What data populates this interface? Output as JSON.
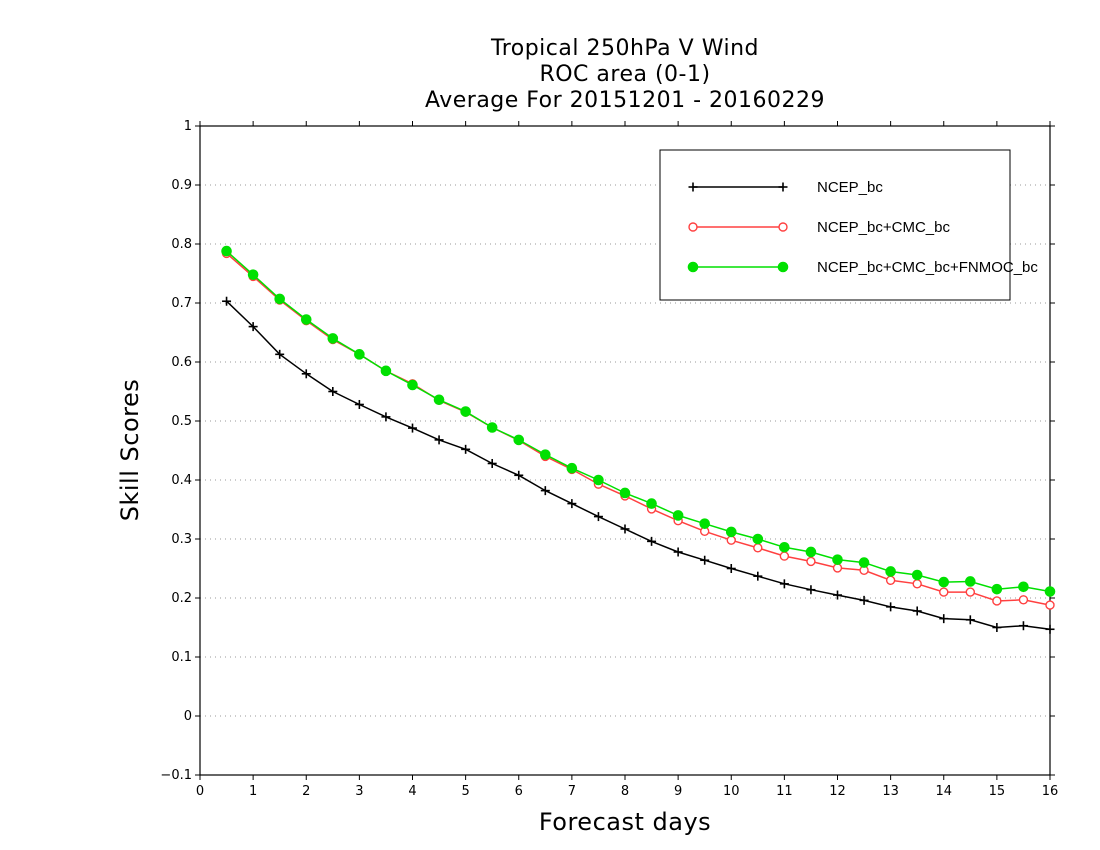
{
  "chart_data": {
    "type": "line",
    "title_lines": [
      "Tropical 250hPa V Wind",
      "ROC area (0-1)",
      "Average For 20151201 - 20160229"
    ],
    "xlabel": "Forecast days",
    "ylabel": "Skill Scores",
    "xlim": [
      0,
      16
    ],
    "ylim": [
      -0.1,
      1
    ],
    "x_ticks": [
      "0",
      "1",
      "2",
      "3",
      "4",
      "5",
      "6",
      "7",
      "8",
      "9",
      "10",
      "11",
      "12",
      "13",
      "14",
      "15",
      "16"
    ],
    "y_ticks": [
      "−0.1",
      "0",
      "0.1",
      "0.2",
      "0.3",
      "0.4",
      "0.5",
      "0.6",
      "0.7",
      "0.8",
      "0.9",
      "1"
    ],
    "grid": "horizontal-dotted",
    "legend_position": "top-right",
    "x": [
      0.5,
      1,
      1.5,
      2,
      2.5,
      3,
      3.5,
      4,
      4.5,
      5,
      5.5,
      6,
      6.5,
      7,
      7.5,
      8,
      8.5,
      9,
      9.5,
      10,
      10.5,
      11,
      11.5,
      12,
      12.5,
      13,
      13.5,
      14,
      14.5,
      15,
      15.5,
      16
    ],
    "series": [
      {
        "name": "NCEP_bc",
        "color": "#000000",
        "marker": "plus",
        "values": [
          0.703,
          0.66,
          0.613,
          0.58,
          0.55,
          0.528,
          0.507,
          0.488,
          0.468,
          0.452,
          0.428,
          0.408,
          0.382,
          0.36,
          0.338,
          0.317,
          0.296,
          0.278,
          0.264,
          0.25,
          0.237,
          0.224,
          0.214,
          0.205,
          0.196,
          0.185,
          0.178,
          0.165,
          0.163,
          0.15,
          0.153,
          0.147
        ]
      },
      {
        "name": "NCEP_bc+CMC_bc",
        "color": "#ff4040",
        "marker": "open-circle",
        "values": [
          0.784,
          0.745,
          0.705,
          0.67,
          0.638,
          0.613,
          0.585,
          0.563,
          0.535,
          0.515,
          0.489,
          0.467,
          0.44,
          0.418,
          0.393,
          0.373,
          0.351,
          0.331,
          0.313,
          0.298,
          0.285,
          0.271,
          0.262,
          0.251,
          0.247,
          0.23,
          0.224,
          0.21,
          0.21,
          0.195,
          0.197,
          0.188
        ]
      },
      {
        "name": "NCEP_bc+CMC_bc+FNMOC_bc",
        "color": "#00e000",
        "marker": "filled-circle",
        "values": [
          0.788,
          0.748,
          0.707,
          0.672,
          0.64,
          0.613,
          0.585,
          0.561,
          0.536,
          0.516,
          0.489,
          0.468,
          0.443,
          0.42,
          0.4,
          0.378,
          0.36,
          0.34,
          0.326,
          0.312,
          0.3,
          0.286,
          0.278,
          0.265,
          0.26,
          0.245,
          0.239,
          0.227,
          0.228,
          0.215,
          0.219,
          0.211
        ]
      }
    ]
  }
}
